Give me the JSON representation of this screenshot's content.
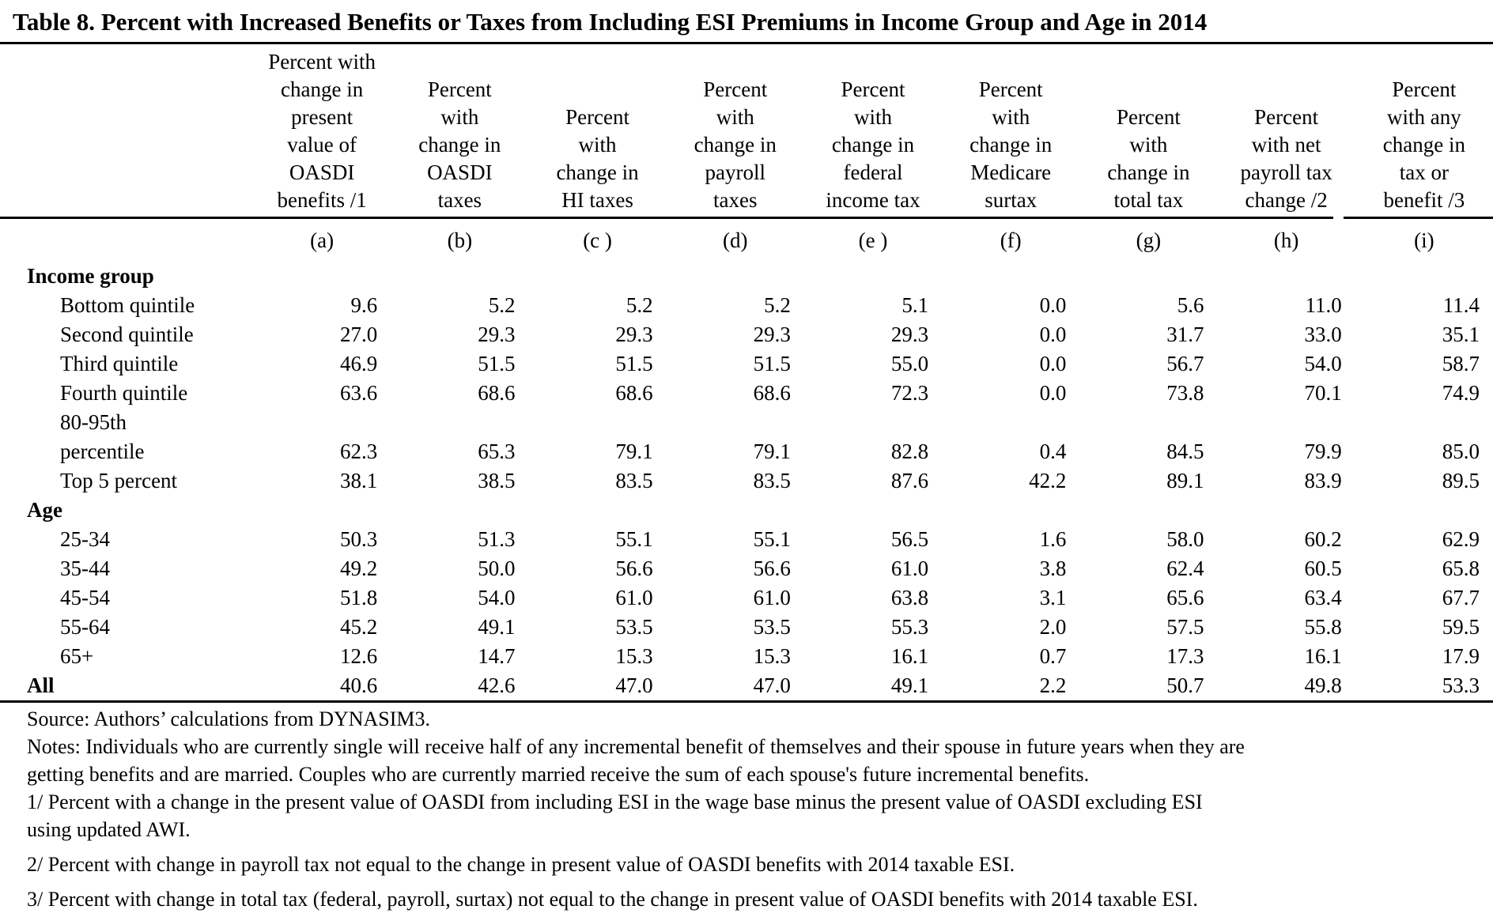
{
  "page": {
    "title": "Table 8. Percent with Increased Benefits or Taxes from Including ESI Premiums in Income Group and Age in 2014"
  },
  "colors": {
    "text": "#000000",
    "background": "#ffffff",
    "rule": "#000000"
  },
  "table": {
    "columns": [
      {
        "id": "a",
        "header_lines": [
          "Percent with",
          "change in",
          "present",
          "value of",
          "OASDI",
          "benefits /1"
        ],
        "letter": "(a)"
      },
      {
        "id": "b",
        "header_lines": [
          "Percent",
          "with",
          "change in",
          "OASDI",
          "taxes"
        ],
        "letter": "(b)"
      },
      {
        "id": "c",
        "header_lines": [
          "Percent",
          "with",
          "change in",
          "HI taxes"
        ],
        "letter": "(c )"
      },
      {
        "id": "d",
        "header_lines": [
          "Percent",
          "with",
          "change in",
          "payroll",
          "taxes"
        ],
        "letter": "(d)"
      },
      {
        "id": "e",
        "header_lines": [
          "Percent",
          "with",
          "change in",
          "federal",
          "income tax"
        ],
        "letter": "(e )"
      },
      {
        "id": "f",
        "header_lines": [
          "Percent",
          "with",
          "change in",
          "Medicare",
          "surtax"
        ],
        "letter": "(f)"
      },
      {
        "id": "g",
        "header_lines": [
          "Percent",
          "with",
          "change in",
          "total tax"
        ],
        "letter": "(g)"
      },
      {
        "id": "h",
        "header_lines": [
          "Percent",
          "with net",
          "payroll tax",
          "change /2"
        ],
        "letter": "(h)"
      },
      {
        "id": "i",
        "header_lines": [
          "Percent",
          "with any",
          "change in",
          "tax or",
          "benefit /3"
        ],
        "letter": "(i)"
      }
    ],
    "rows": [
      {
        "type": "section",
        "label": "Income group",
        "values": []
      },
      {
        "type": "data",
        "label": "Bottom quintile",
        "values": [
          "9.6",
          "5.2",
          "5.2",
          "5.2",
          "5.1",
          "0.0",
          "5.6",
          "11.0",
          "11.4"
        ]
      },
      {
        "type": "data",
        "label": "Second quintile",
        "values": [
          "27.0",
          "29.3",
          "29.3",
          "29.3",
          "29.3",
          "0.0",
          "31.7",
          "33.0",
          "35.1"
        ]
      },
      {
        "type": "data",
        "label": "Third quintile",
        "values": [
          "46.9",
          "51.5",
          "51.5",
          "51.5",
          "55.0",
          "0.0",
          "56.7",
          "54.0",
          "58.7"
        ]
      },
      {
        "type": "data",
        "label": "Fourth quintile",
        "values": [
          "63.6",
          "68.6",
          "68.6",
          "68.6",
          "72.3",
          "0.0",
          "73.8",
          "70.1",
          "74.9"
        ]
      },
      {
        "type": "data",
        "label": "80-95th",
        "values": []
      },
      {
        "type": "data",
        "label": "percentile",
        "values": [
          "62.3",
          "65.3",
          "79.1",
          "79.1",
          "82.8",
          "0.4",
          "84.5",
          "79.9",
          "85.0"
        ]
      },
      {
        "type": "data",
        "label": "Top 5 percent",
        "values": [
          "38.1",
          "38.5",
          "83.5",
          "83.5",
          "87.6",
          "42.2",
          "89.1",
          "83.9",
          "89.5"
        ]
      },
      {
        "type": "section",
        "label": "Age",
        "values": []
      },
      {
        "type": "data",
        "label": "25-34",
        "values": [
          "50.3",
          "51.3",
          "55.1",
          "55.1",
          "56.5",
          "1.6",
          "58.0",
          "60.2",
          "62.9"
        ]
      },
      {
        "type": "data",
        "label": "35-44",
        "values": [
          "49.2",
          "50.0",
          "56.6",
          "56.6",
          "61.0",
          "3.8",
          "62.4",
          "60.5",
          "65.8"
        ]
      },
      {
        "type": "data",
        "label": "45-54",
        "values": [
          "51.8",
          "54.0",
          "61.0",
          "61.0",
          "63.8",
          "3.1",
          "65.6",
          "63.4",
          "67.7"
        ]
      },
      {
        "type": "data",
        "label": "55-64",
        "values": [
          "45.2",
          "49.1",
          "53.5",
          "53.5",
          "55.3",
          "2.0",
          "57.5",
          "55.8",
          "59.5"
        ]
      },
      {
        "type": "data",
        "label": "65+",
        "values": [
          "12.6",
          "14.7",
          "15.3",
          "15.3",
          "16.1",
          "0.7",
          "17.3",
          "16.1",
          "17.9"
        ]
      },
      {
        "type": "total",
        "label": "All",
        "values": [
          "40.6",
          "42.6",
          "47.0",
          "47.0",
          "49.1",
          "2.2",
          "50.7",
          "49.8",
          "53.3"
        ]
      }
    ]
  },
  "footnotes": [
    {
      "spaced": false,
      "lines": [
        "Source: Authors’ calculations from DYNASIM3."
      ]
    },
    {
      "spaced": false,
      "lines": [
        "Notes: Individuals who are currently single will receive half of any incremental benefit of themselves and their spouse in future years when they are",
        "getting benefits and are married. Couples who are currently married receive the sum of each spouse's future incremental benefits."
      ]
    },
    {
      "spaced": false,
      "lines": [
        "1/ Percent with a change in the present value of OASDI from including ESI in the wage base minus the present value of OASDI excluding ESI",
        "using updated AWI."
      ]
    },
    {
      "spaced": true,
      "lines": [
        "2/ Percent with change in payroll tax not equal to the change in present value of OASDI benefits with 2014 taxable ESI."
      ]
    },
    {
      "spaced": true,
      "lines": [
        "3/ Percent with change in total tax (federal, payroll, surtax) not equal to the change in present value of OASDI benefits with 2014 taxable ESI."
      ]
    }
  ]
}
